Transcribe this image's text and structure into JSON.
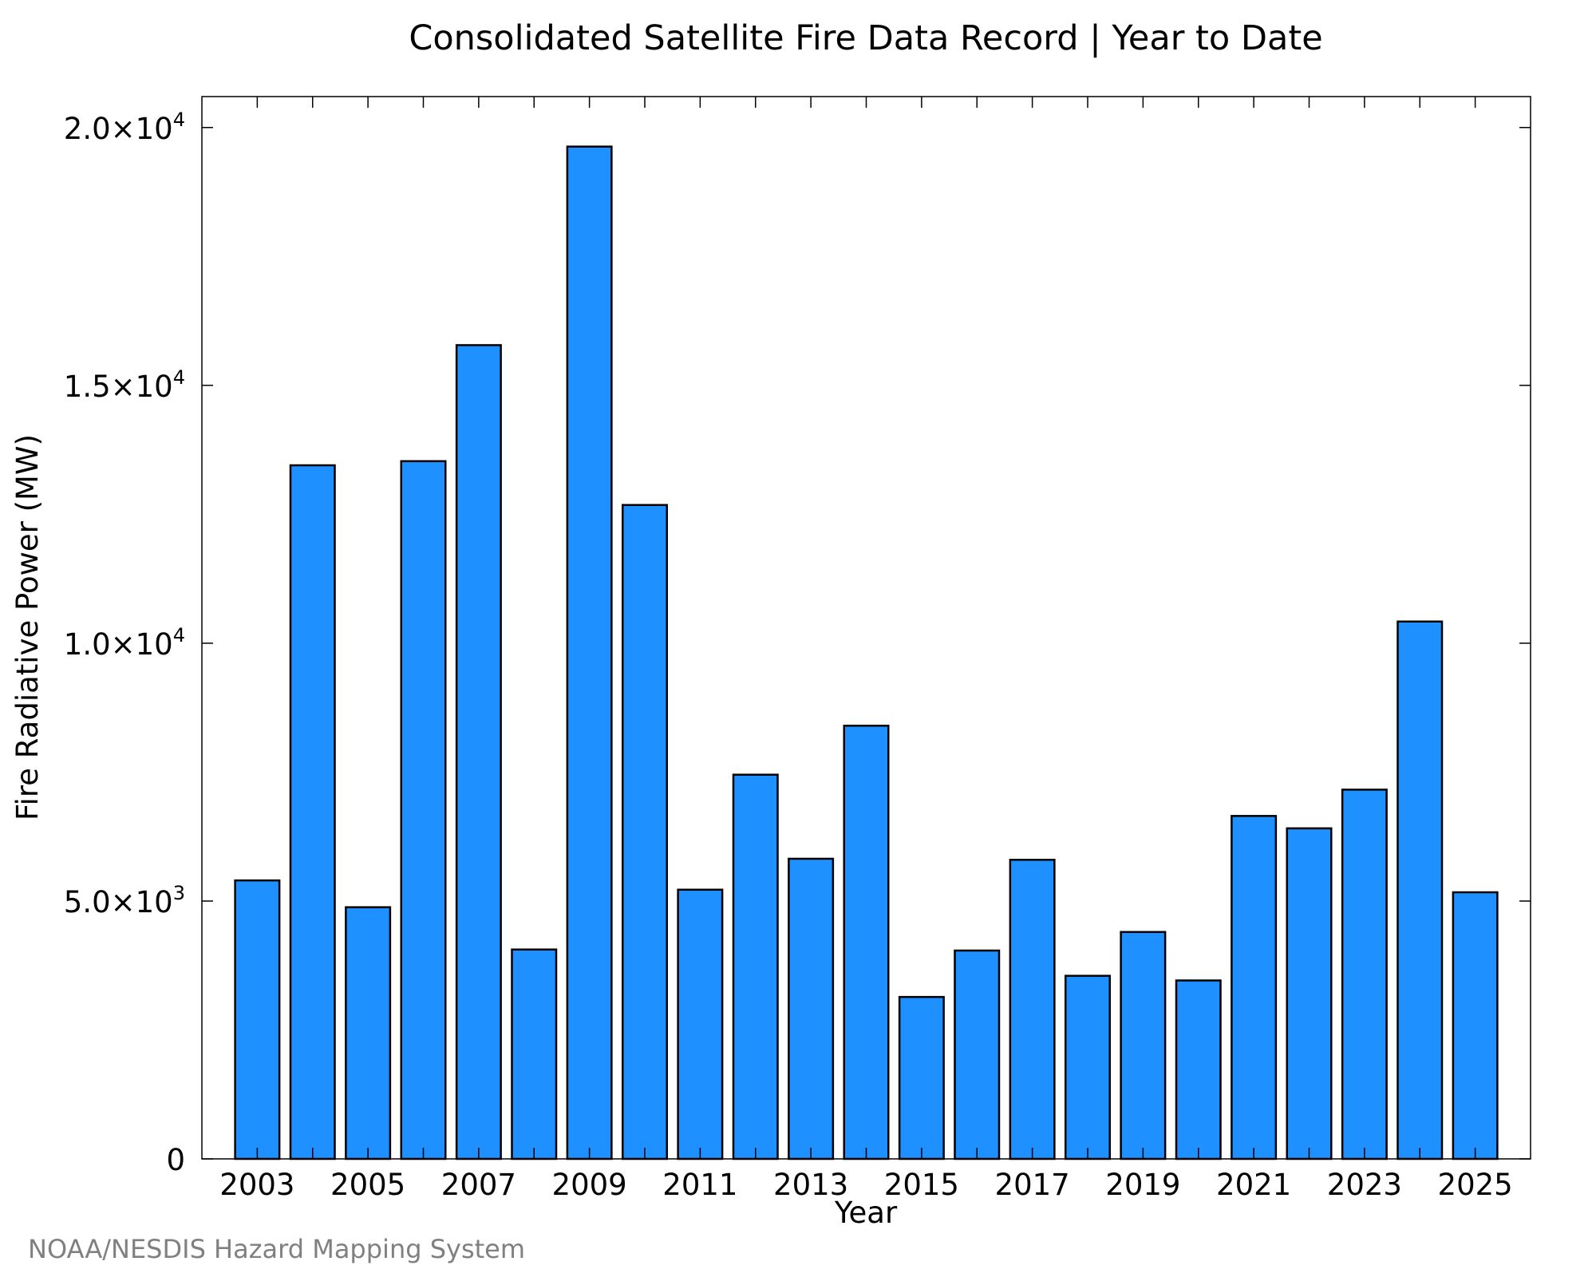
{
  "chart_data": {
    "type": "bar",
    "title": "Consolidated Satellite Fire Data Record | Year to Date",
    "xlabel": "Year",
    "ylabel": "Fire Radiative Power (MW)",
    "categories": [
      2003,
      2004,
      2005,
      2006,
      2007,
      2008,
      2009,
      2010,
      2011,
      2012,
      2013,
      2014,
      2015,
      2016,
      2017,
      2018,
      2019,
      2020,
      2021,
      2022,
      2023,
      2024,
      2025
    ],
    "values": [
      5400,
      13450,
      4880,
      13530,
      15780,
      4060,
      19630,
      12680,
      5220,
      7450,
      5820,
      8400,
      3140,
      4040,
      5800,
      3550,
      4400,
      3460,
      6650,
      6410,
      7160,
      10420,
      5170
    ],
    "xlim": [
      2002.0,
      2026.0
    ],
    "ylim": [
      0,
      20600
    ],
    "x_tick_labels": [
      "2003",
      "2005",
      "2007",
      "2009",
      "2011",
      "2013",
      "2015",
      "2017",
      "2019",
      "2021",
      "2023",
      "2025"
    ],
    "y_ticks": [
      {
        "value": 0,
        "mantissa": "0",
        "exponent": ""
      },
      {
        "value": 5000,
        "mantissa": "5.0×10",
        "exponent": "3"
      },
      {
        "value": 10000,
        "mantissa": "1.0×10",
        "exponent": "4"
      },
      {
        "value": 15000,
        "mantissa": "1.5×10",
        "exponent": "4"
      },
      {
        "value": 20000,
        "mantissa": "2.0×10",
        "exponent": "4"
      }
    ],
    "grid": false,
    "bar_color": "#1E90FF",
    "edge_color": "#000000"
  },
  "credit": "NOAA/NESDIS Hazard Mapping System"
}
